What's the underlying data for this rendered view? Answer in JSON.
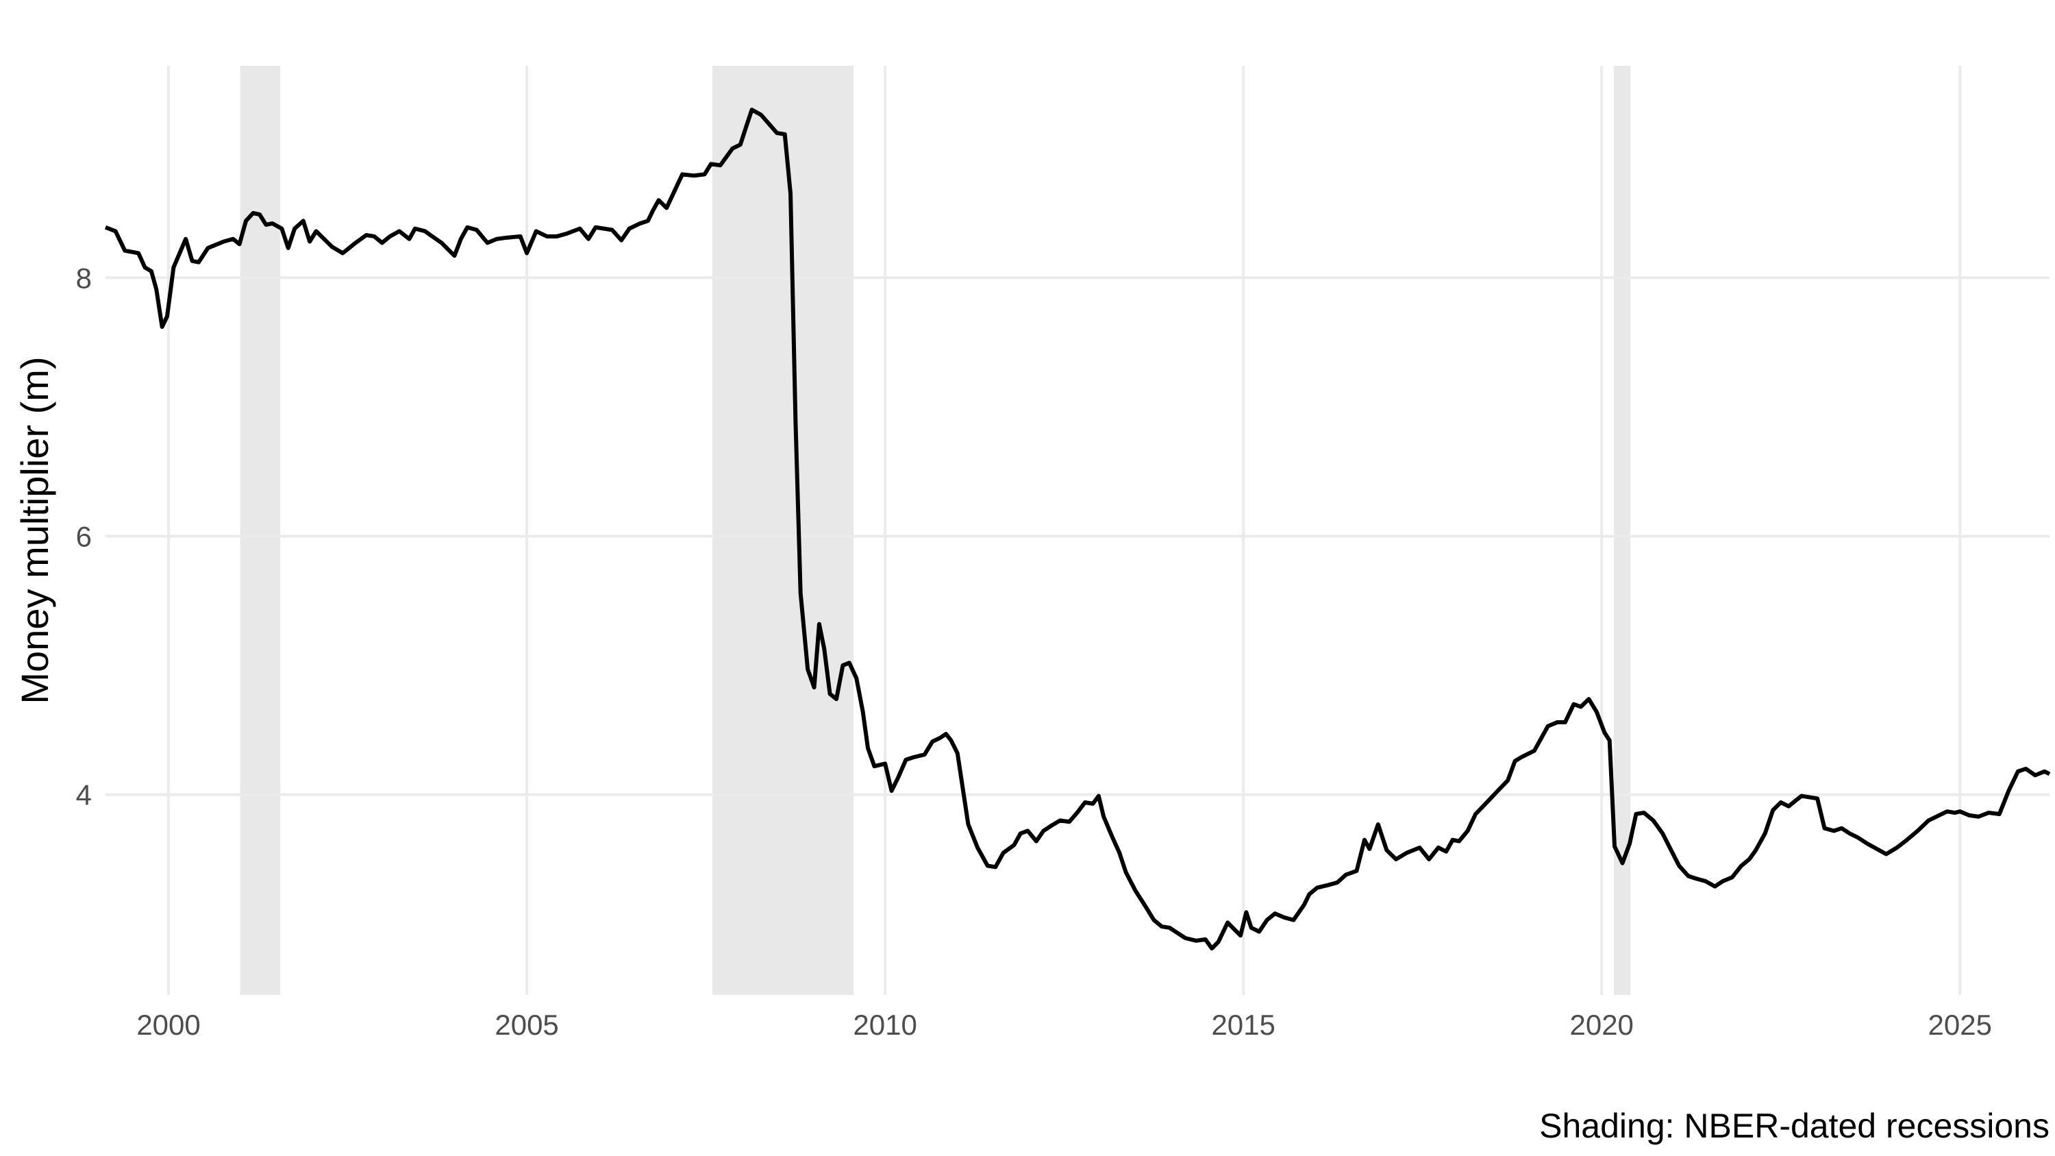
{
  "chart_data": {
    "type": "line",
    "y_label": "Money multiplier (m)",
    "caption": "Shading: NBER-dated recessions",
    "xlim": [
      1999.12,
      2026.25
    ],
    "xticks": [
      2000,
      2005,
      2010,
      2015,
      2020,
      2025
    ],
    "ylim": [
      2.45,
      9.64
    ],
    "yticks": [
      4,
      6,
      8
    ],
    "grid": true,
    "recessions": [
      [
        2001.0,
        2001.56
      ],
      [
        2007.59,
        2009.56
      ],
      [
        2020.17,
        2020.4
      ]
    ],
    "recession_color": "#e8e8e8",
    "x": [
      1999.12,
      1999.26,
      1999.39,
      1999.58,
      1999.67,
      1999.76,
      1999.83,
      1999.91,
      1999.98,
      2000.07,
      2000.24,
      2000.33,
      2000.42,
      2000.55,
      2000.77,
      2000.9,
      2000.99,
      2001.08,
      2001.18,
      2001.27,
      2001.36,
      2001.45,
      2001.58,
      2001.67,
      2001.76,
      2001.88,
      2001.97,
      2002.06,
      2002.17,
      2002.28,
      2002.43,
      2002.61,
      2002.76,
      2002.87,
      2002.98,
      2003.09,
      2003.22,
      2003.36,
      2003.44,
      2003.58,
      2003.68,
      2003.81,
      2003.99,
      2004.08,
      2004.17,
      2004.3,
      2004.45,
      2004.58,
      2004.72,
      2004.91,
      2005.0,
      2005.13,
      2005.28,
      2005.42,
      2005.55,
      2005.74,
      2005.86,
      2005.96,
      2006.19,
      2006.32,
      2006.43,
      2006.58,
      2006.69,
      2006.76,
      2006.84,
      2006.95,
      2007.06,
      2007.17,
      2007.33,
      2007.48,
      2007.57,
      2007.7,
      2007.87,
      2007.98,
      2008.05,
      2008.14,
      2008.27,
      2008.38,
      2008.49,
      2008.6,
      2008.68,
      2008.75,
      2008.82,
      2008.92,
      2009.01,
      2009.08,
      2009.15,
      2009.23,
      2009.32,
      2009.41,
      2009.5,
      2009.6,
      2009.69,
      2009.76,
      2009.85,
      2010.0,
      2010.09,
      2010.18,
      2010.29,
      2010.4,
      2010.55,
      2010.66,
      2010.77,
      2010.85,
      2010.92,
      2011.01,
      2011.16,
      2011.29,
      2011.43,
      2011.54,
      2011.65,
      2011.8,
      2011.89,
      2011.99,
      2012.11,
      2012.21,
      2012.32,
      2012.44,
      2012.57,
      2012.68,
      2012.79,
      2012.9,
      2012.98,
      2013.05,
      2013.18,
      2013.27,
      2013.36,
      2013.49,
      2013.64,
      2013.75,
      2013.86,
      2013.97,
      2014.08,
      2014.19,
      2014.34,
      2014.47,
      2014.56,
      2014.65,
      2014.78,
      2014.87,
      2014.96,
      2015.04,
      2015.11,
      2015.22,
      2015.33,
      2015.44,
      2015.57,
      2015.7,
      2015.85,
      2015.92,
      2016.03,
      2016.18,
      2016.31,
      2016.43,
      2016.58,
      2016.69,
      2016.76,
      2016.88,
      2017.0,
      2017.13,
      2017.28,
      2017.46,
      2017.59,
      2017.72,
      2017.83,
      2017.92,
      2018.01,
      2018.13,
      2018.24,
      2018.38,
      2018.55,
      2018.69,
      2018.79,
      2018.88,
      2019.06,
      2019.15,
      2019.25,
      2019.38,
      2019.49,
      2019.61,
      2019.71,
      2019.82,
      2019.93,
      2020.04,
      2020.11,
      2020.18,
      2020.29,
      2020.39,
      2020.48,
      2020.59,
      2020.72,
      2020.85,
      2020.96,
      2021.08,
      2021.21,
      2021.32,
      2021.45,
      2021.58,
      2021.69,
      2021.82,
      2021.95,
      2022.06,
      2022.15,
      2022.28,
      2022.39,
      2022.5,
      2022.61,
      2022.72,
      2022.79,
      2022.9,
      2023.01,
      2023.11,
      2023.24,
      2023.35,
      2023.46,
      2023.57,
      2023.71,
      2023.84,
      2023.97,
      2024.12,
      2024.26,
      2024.41,
      2024.56,
      2024.71,
      2024.82,
      2024.93,
      2025.0,
      2025.13,
      2025.26,
      2025.4,
      2025.55,
      2025.68,
      2025.81,
      2025.92,
      2026.05,
      2026.18,
      2026.25
    ],
    "series": [
      {
        "color": "#000000",
        "values": [
          8.39,
          8.36,
          8.21,
          8.19,
          8.08,
          8.05,
          7.91,
          7.62,
          7.7,
          8.08,
          8.3,
          8.13,
          8.12,
          8.23,
          8.28,
          8.3,
          8.26,
          8.44,
          8.5,
          8.49,
          8.41,
          8.42,
          8.38,
          8.23,
          8.38,
          8.44,
          8.28,
          8.36,
          8.3,
          8.24,
          8.19,
          8.27,
          8.33,
          8.32,
          8.27,
          8.32,
          8.36,
          8.3,
          8.38,
          8.36,
          8.32,
          8.27,
          8.17,
          8.3,
          8.39,
          8.37,
          8.27,
          8.3,
          8.31,
          8.32,
          8.19,
          8.36,
          8.32,
          8.32,
          8.34,
          8.38,
          8.3,
          8.39,
          8.37,
          8.29,
          8.38,
          8.42,
          8.44,
          8.52,
          8.6,
          8.54,
          8.67,
          8.8,
          8.79,
          8.8,
          8.88,
          8.87,
          9.0,
          9.03,
          9.15,
          9.3,
          9.26,
          9.19,
          9.12,
          9.11,
          8.65,
          6.89,
          5.56,
          4.97,
          4.83,
          5.32,
          5.13,
          4.78,
          4.74,
          5.0,
          5.02,
          4.9,
          4.64,
          4.36,
          4.22,
          4.24,
          4.03,
          4.13,
          4.27,
          4.29,
          4.31,
          4.41,
          4.44,
          4.47,
          4.42,
          4.32,
          3.77,
          3.59,
          3.45,
          3.44,
          3.55,
          3.61,
          3.7,
          3.72,
          3.64,
          3.72,
          3.76,
          3.8,
          3.79,
          3.86,
          3.94,
          3.93,
          3.99,
          3.83,
          3.66,
          3.55,
          3.4,
          3.26,
          3.13,
          3.03,
          2.98,
          2.97,
          2.93,
          2.89,
          2.87,
          2.88,
          2.81,
          2.86,
          3.01,
          2.96,
          2.91,
          3.09,
          2.97,
          2.94,
          3.03,
          3.08,
          3.05,
          3.03,
          3.15,
          3.23,
          3.28,
          3.3,
          3.32,
          3.38,
          3.41,
          3.65,
          3.58,
          3.77,
          3.57,
          3.5,
          3.55,
          3.59,
          3.5,
          3.59,
          3.56,
          3.65,
          3.64,
          3.72,
          3.85,
          3.93,
          4.03,
          4.11,
          4.26,
          4.29,
          4.34,
          4.43,
          4.53,
          4.56,
          4.56,
          4.7,
          4.68,
          4.74,
          4.64,
          4.48,
          4.42,
          3.6,
          3.47,
          3.62,
          3.85,
          3.86,
          3.8,
          3.7,
          3.58,
          3.45,
          3.37,
          3.35,
          3.33,
          3.29,
          3.33,
          3.36,
          3.45,
          3.5,
          3.57,
          3.7,
          3.88,
          3.94,
          3.91,
          3.96,
          3.99,
          3.98,
          3.97,
          3.74,
          3.72,
          3.74,
          3.7,
          3.67,
          3.62,
          3.58,
          3.54,
          3.59,
          3.65,
          3.72,
          3.8,
          3.84,
          3.87,
          3.86,
          3.87,
          3.84,
          3.83,
          3.86,
          3.85,
          4.03,
          4.18,
          4.2,
          4.15,
          4.18,
          4.16
        ]
      }
    ]
  }
}
